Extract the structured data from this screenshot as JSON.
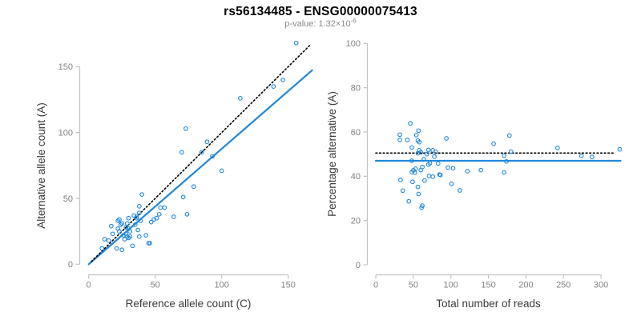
{
  "header": {
    "title": "rs56134485 - ENSG00000075413",
    "pvalue_base": "p-value: 1.32×10",
    "pvalue_exponent": "-6"
  },
  "colors": {
    "accent_blue": "#1E87DC",
    "dotted_black": "#000000",
    "tick_label": "#808080",
    "axis_line": "#C3C3C3",
    "axis_title": "#3A3A3A",
    "subtitle_gray": "#8A8A8A"
  },
  "chart_data": [
    {
      "type": "scatter",
      "title": "",
      "xlabel": "Reference allele count (C)",
      "ylabel": "Alternative allele count (A)",
      "xticks": [
        0,
        50,
        100,
        150
      ],
      "yticks": [
        0,
        50,
        100,
        150
      ],
      "xlim": [
        0,
        168
      ],
      "ylim": [
        0,
        170
      ],
      "grid": false,
      "legend": null,
      "points": [
        [
          156,
          168
        ],
        [
          146,
          140
        ],
        [
          139,
          135
        ],
        [
          114,
          126
        ],
        [
          73,
          103
        ],
        [
          89,
          93
        ],
        [
          85,
          85
        ],
        [
          70,
          85
        ],
        [
          93,
          82
        ],
        [
          100,
          71
        ],
        [
          79,
          59
        ],
        [
          71,
          51
        ],
        [
          40,
          53
        ],
        [
          54,
          43
        ],
        [
          57,
          43
        ],
        [
          74,
          38
        ],
        [
          64,
          36
        ],
        [
          53,
          38
        ],
        [
          51,
          35
        ],
        [
          49,
          34
        ],
        [
          38,
          44
        ],
        [
          34,
          37
        ],
        [
          38,
          39
        ],
        [
          39,
          33
        ],
        [
          47,
          32
        ],
        [
          23,
          34
        ],
        [
          22,
          33
        ],
        [
          24,
          30
        ],
        [
          17,
          29
        ],
        [
          29,
          31
        ],
        [
          31,
          25
        ],
        [
          37,
          26
        ],
        [
          38,
          21
        ],
        [
          43,
          22
        ],
        [
          23,
          25
        ],
        [
          15,
          18
        ],
        [
          12,
          19
        ],
        [
          18,
          23
        ],
        [
          26,
          22
        ],
        [
          28,
          23
        ],
        [
          29,
          21
        ],
        [
          30,
          20
        ],
        [
          27,
          19
        ],
        [
          33,
          14
        ],
        [
          21,
          12
        ],
        [
          25,
          11
        ],
        [
          45,
          16
        ],
        [
          46,
          16
        ],
        [
          10,
          12
        ],
        [
          28,
          28
        ],
        [
          30,
          27
        ],
        [
          35,
          30
        ],
        [
          36,
          35
        ],
        [
          31,
          21
        ],
        [
          22,
          27
        ],
        [
          25,
          31
        ],
        [
          30,
          35
        ],
        [
          36,
          36
        ]
      ],
      "lines": [
        {
          "name": "fit-line",
          "style": "solid",
          "color": "#1E87DC",
          "width": 2.2,
          "x1": 0,
          "y1": 0,
          "x2": 168,
          "y2": 147.3
        },
        {
          "name": "identity-line",
          "style": "dotted",
          "color": "#000000",
          "width": 1.6,
          "x1": 2,
          "y1": 2,
          "x2": 166,
          "y2": 166
        }
      ]
    },
    {
      "type": "scatter",
      "title": "",
      "xlabel": "Total number of reads",
      "ylabel": "Percentage alternative (A)",
      "xticks": [
        0,
        50,
        100,
        150,
        200,
        250,
        300
      ],
      "yticks": [
        0,
        20,
        40,
        60,
        80,
        100
      ],
      "xlim": [
        0,
        326
      ],
      "ylim": [
        0,
        100
      ],
      "grid": false,
      "legend": null,
      "points": [
        [
          46,
          63.9
        ],
        [
          57,
          60.6
        ],
        [
          32,
          58.8
        ],
        [
          54,
          58.6
        ],
        [
          94,
          57.1
        ],
        [
          32,
          56.4
        ],
        [
          42,
          56.4
        ],
        [
          56,
          56.1
        ],
        [
          58,
          55.4
        ],
        [
          178,
          58.4
        ],
        [
          157,
          54.7
        ],
        [
          242,
          52.8
        ],
        [
          48,
          53.0
        ],
        [
          325,
          52.2
        ],
        [
          58,
          51.7
        ],
        [
          60,
          50.8
        ],
        [
          56,
          50.4
        ],
        [
          70,
          51.9
        ],
        [
          76,
          51.7
        ],
        [
          80,
          51.0
        ],
        [
          68,
          50.0
        ],
        [
          78,
          48.9
        ],
        [
          180,
          51.1
        ],
        [
          171,
          49.3
        ],
        [
          274,
          49.2
        ],
        [
          288,
          48.7
        ],
        [
          48,
          47.0
        ],
        [
          64,
          47.7
        ],
        [
          72,
          45.9
        ],
        [
          70,
          45.3
        ],
        [
          62,
          44.2
        ],
        [
          83,
          45.8
        ],
        [
          174,
          46.7
        ],
        [
          96,
          43.9
        ],
        [
          103,
          43.6
        ],
        [
          140,
          42.8
        ],
        [
          122,
          42.3
        ],
        [
          60,
          42.8
        ],
        [
          53,
          43.4
        ],
        [
          50,
          42.7
        ],
        [
          48,
          41.9
        ],
        [
          52,
          41.6
        ],
        [
          171,
          41.7
        ],
        [
          85,
          40.8
        ],
        [
          86,
          40.6
        ],
        [
          71,
          40.1
        ],
        [
          76,
          39.8
        ],
        [
          65,
          38.1
        ],
        [
          33,
          38.4
        ],
        [
          49,
          37.5
        ],
        [
          101,
          36.6
        ],
        [
          56,
          35.2
        ],
        [
          36,
          33.5
        ],
        [
          112,
          33.6
        ],
        [
          57,
          32.0
        ],
        [
          44,
          28.7
        ],
        [
          62,
          26.7
        ],
        [
          61,
          25.8
        ]
      ],
      "lines": [
        {
          "name": "fit-line",
          "style": "solid",
          "color": "#1E87DC",
          "width": 2.2,
          "x1": 0,
          "y1": 47,
          "x2": 326,
          "y2": 47
        },
        {
          "name": "mean-line",
          "style": "dotted",
          "color": "#000000",
          "width": 1.6,
          "x1": 0,
          "y1": 50.5,
          "x2": 317,
          "y2": 50.5
        }
      ]
    }
  ]
}
